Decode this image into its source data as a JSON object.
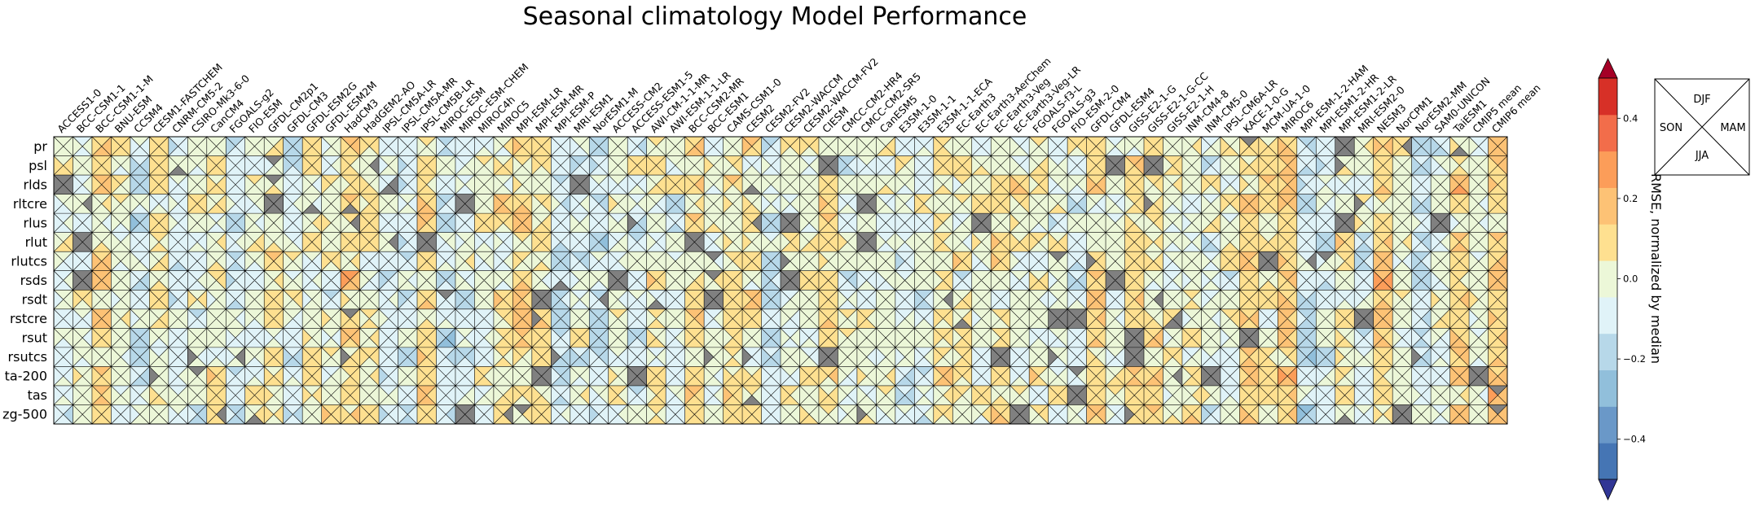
{
  "chart_data": {
    "type": "heatmap",
    "title": "Seasonal climatology Model Performance",
    "models": [
      "ACCESS1-0",
      "BCC-CSM1-1",
      "BCC-CSM1-1-M",
      "BNU-ESM",
      "CCSM4",
      "CESM1-FASTCHEM",
      "CNRM-CM5-2",
      "CSIRO-Mk3-6-0",
      "CanCM4",
      "FGOALS-g2",
      "FIO-ESM",
      "GFDL-CM2p1",
      "GFDL-CM3",
      "GFDL-ESM2G",
      "GFDL-ESM2M",
      "HadCM3",
      "HadGEM2-AO",
      "IPSL-CM5A-LR",
      "IPSL-CM5A-MR",
      "IPSL-CM5B-LR",
      "MIROC-ESM",
      "MIROC-ESM-CHEM",
      "MIROC4h",
      "MIROC5",
      "MPI-ESM-LR",
      "MPI-ESM-MR",
      "MPI-ESM-P",
      "MRI-ESM1",
      "NorESM1-M",
      "ACCESS-CM2",
      "ACCESS-ESM1-5",
      "AWI-CM-1-1-MR",
      "AWI-ESM-1-1-LR",
      "BCC-CSM2-MR",
      "BCC-ESM1",
      "CAMS-CSM1-0",
      "CESM2",
      "CESM2-FV2",
      "CESM2-WACCM",
      "CESM2-WACCM-FV2",
      "CIESM",
      "CMCC-CM2-HR4",
      "CMCC-CM2-SR5",
      "CanESM5",
      "E3SM-1-0",
      "E3SM-1-1",
      "E3SM-1-1-ECA",
      "EC-Earth3",
      "EC-Earth3-AerChem",
      "EC-Earth3-Veg",
      "EC-Earth3-Veg-LR",
      "FGOALS-f3-L",
      "FGOALS-g3",
      "FIO-ESM-2-0",
      "GFDL-CM4",
      "GFDL-ESM4",
      "GISS-E2-1-G",
      "GISS-E2-1-G-CC",
      "GISS-E2-1-H",
      "INM-CM4-8",
      "INM-CM5-0",
      "IPSL-CM6A-LR",
      "KACE-1-0-G",
      "MCM-UA-1-0",
      "MIROC6",
      "MPI-ESM-1-2-HAM",
      "MPI-ESM1-2-HR",
      "MPI-ESM1-2-LR",
      "MRI-ESM2-0",
      "NESM3",
      "NorCPM1",
      "NorESM2-MM",
      "SAM0-UNICON",
      "TaiESM1",
      "CMIP5 mean",
      "CMIP6 mean"
    ],
    "variables": [
      "pr",
      "psl",
      "rlds",
      "rltcre",
      "rlus",
      "rlut",
      "rlutcs",
      "rsds",
      "rsdt",
      "rstcre",
      "rsut",
      "rsutcs",
      "ta-200",
      "tas",
      "zg-500"
    ],
    "seasons": [
      "DJF",
      "MAM",
      "JJA",
      "SON"
    ],
    "colorbar": {
      "label": "RMSE, normalized by median",
      "vmin": -0.5,
      "vmax": 0.5,
      "ticks": [
        -0.4,
        -0.2,
        0.0,
        0.2,
        0.4
      ],
      "tick_labels": [
        "−0.4",
        "−0.2",
        "0.0",
        "0.2",
        "0.4"
      ],
      "colors": [
        "#4575b4",
        "#6a98c8",
        "#91bfdb",
        "#b7d8e9",
        "#e0f3f8",
        "#ecf7d8",
        "#fee090",
        "#fdc275",
        "#fc9d59",
        "#f26d4a",
        "#d73027"
      ],
      "under_color": "#313695",
      "over_color": "#a50026",
      "nodata_color": "#808080"
    },
    "grid": true,
    "legend": {
      "placement": "top-right"
    }
  }
}
